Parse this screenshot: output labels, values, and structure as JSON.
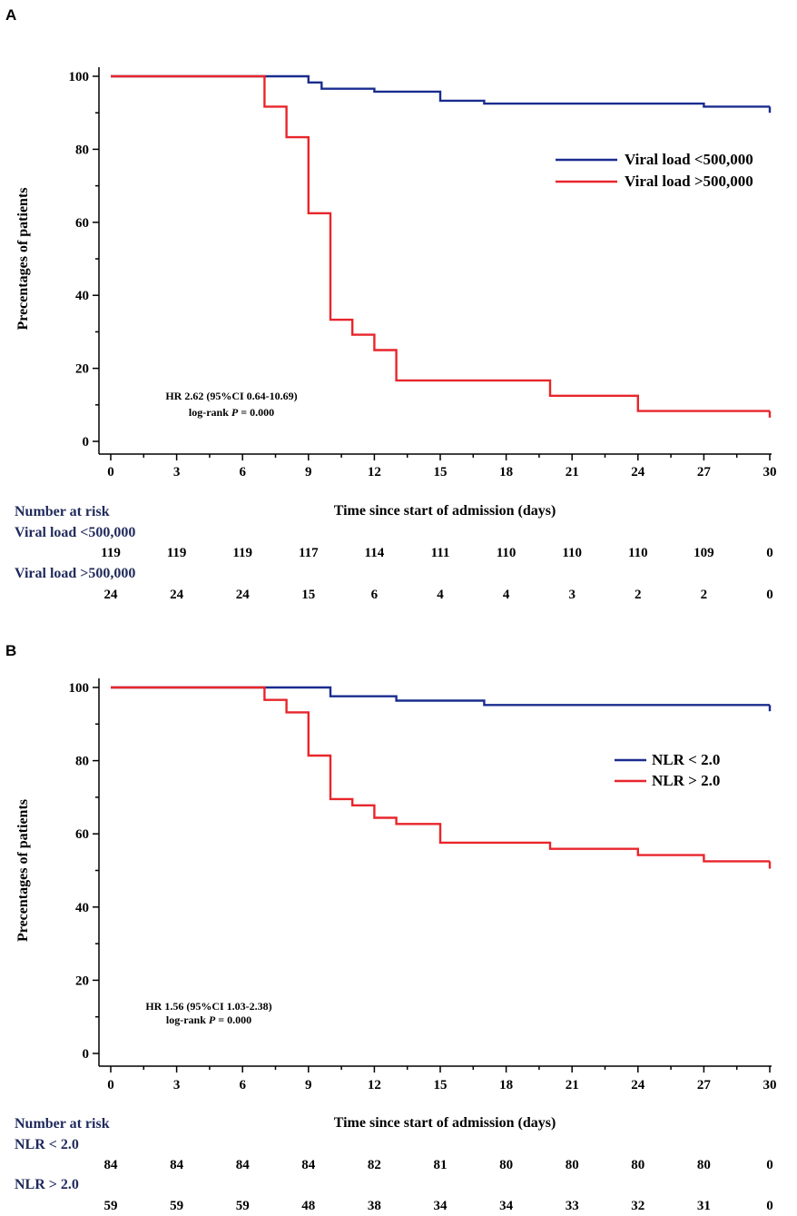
{
  "colors": {
    "blue": "#1a2c8f",
    "red": "#e8252b"
  },
  "chart_data": [
    {
      "panel": "A",
      "type": "line",
      "subtype": "kaplan-meier step",
      "xlabel": "Time since start of admission (days)",
      "ylabel": "Precentages of patients",
      "xlim": [
        0,
        30
      ],
      "ylim": [
        0,
        100
      ],
      "x_ticks": [
        0,
        3,
        6,
        9,
        12,
        15,
        18,
        21,
        24,
        27,
        30
      ],
      "y_ticks": [
        0,
        20,
        40,
        60,
        80,
        100
      ],
      "series": [
        {
          "name": "Viral load <500,000",
          "color": "#1a2c8f",
          "steps": [
            [
              0,
              100
            ],
            [
              9,
              98.3
            ],
            [
              9.6,
              96.6
            ],
            [
              12,
              95.8
            ],
            [
              15,
              93.3
            ],
            [
              17,
              92.5
            ],
            [
              27,
              91.7
            ],
            [
              30,
              90
            ]
          ]
        },
        {
          "name": "Viral load >500,000",
          "color": "#e8252b",
          "steps": [
            [
              0,
              100
            ],
            [
              7,
              91.7
            ],
            [
              8,
              83.3
            ],
            [
              9,
              62.5
            ],
            [
              10,
              33.3
            ],
            [
              11,
              29.2
            ],
            [
              12,
              25
            ],
            [
              13,
              16.7
            ],
            [
              20,
              12.5
            ],
            [
              24,
              8.3
            ],
            [
              30,
              6.5
            ]
          ]
        }
      ],
      "legend_position": "right",
      "annotation": {
        "line1": "HR 2.62 (95%CI 0.64-10.69)",
        "line2": "log-rank ",
        "p_italic": "P",
        "line2_rest": " = 0.000"
      },
      "risk_table": {
        "title": "Number at risk",
        "rows": [
          {
            "label": "Viral load <500,000",
            "values": [
              "119",
              "119",
              "119",
              "117",
              "114",
              "111",
              "110",
              "110",
              "110",
              "109",
              "0"
            ]
          },
          {
            "label": "Viral load >500,000",
            "values": [
              "24",
              "24",
              "24",
              "15",
              "6",
              "4",
              "4",
              "3",
              "2",
              "2",
              "0"
            ]
          }
        ]
      }
    },
    {
      "panel": "B",
      "type": "line",
      "subtype": "kaplan-meier step",
      "xlabel": "Time since start of admission (days)",
      "ylabel": "Precentages of patients",
      "xlim": [
        0,
        30
      ],
      "ylim": [
        0,
        100
      ],
      "x_ticks": [
        0,
        3,
        6,
        9,
        12,
        15,
        18,
        21,
        24,
        27,
        30
      ],
      "y_ticks": [
        0,
        20,
        40,
        60,
        80,
        100
      ],
      "series": [
        {
          "name": "NLR < 2.0",
          "color": "#1a2c8f",
          "steps": [
            [
              0,
              100
            ],
            [
              10,
              97.6
            ],
            [
              13,
              96.4
            ],
            [
              17,
              95.2
            ],
            [
              30,
              93.5
            ]
          ]
        },
        {
          "name": "NLR > 2.0",
          "color": "#e8252b",
          "steps": [
            [
              0,
              100
            ],
            [
              7,
              96.6
            ],
            [
              8,
              93.2
            ],
            [
              9,
              81.4
            ],
            [
              10,
              69.5
            ],
            [
              11,
              67.8
            ],
            [
              12,
              64.4
            ],
            [
              13,
              62.7
            ],
            [
              15,
              57.6
            ],
            [
              20,
              55.9
            ],
            [
              24,
              54.2
            ],
            [
              27,
              52.5
            ],
            [
              30,
              50.5
            ]
          ]
        }
      ],
      "legend_position": "right",
      "annotation": {
        "line1": "HR 1.56 (95%CI 1.03-2.38)",
        "line2": "log-rank ",
        "p_italic": "P",
        "line2_rest": " = 0.000"
      },
      "risk_table": {
        "title": "Number at risk",
        "rows": [
          {
            "label": "NLR < 2.0",
            "values": [
              "84",
              "84",
              "84",
              "84",
              "82",
              "81",
              "80",
              "80",
              "80",
              "80",
              "0"
            ]
          },
          {
            "label": "NLR > 2.0",
            "values": [
              "59",
              "59",
              "59",
              "48",
              "38",
              "34",
              "34",
              "33",
              "32",
              "31",
              "0"
            ]
          }
        ]
      }
    }
  ]
}
